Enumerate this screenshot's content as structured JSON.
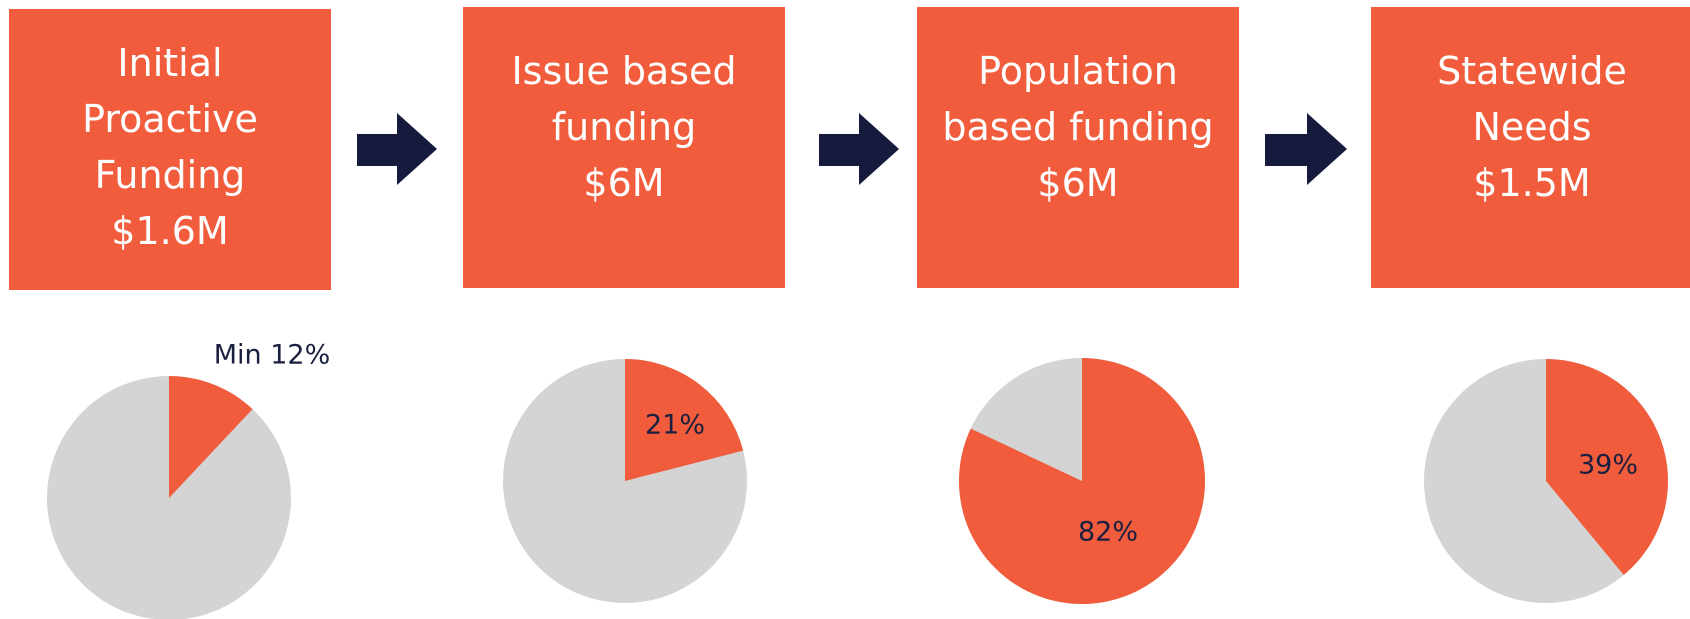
{
  "steps": [
    {
      "lines": [
        "Initial",
        "Proactive",
        "Funding",
        "$1.6M"
      ]
    },
    {
      "lines": [
        "Issue based",
        "funding",
        "$6M"
      ]
    },
    {
      "lines": [
        "Population",
        "based funding",
        "$6M"
      ]
    },
    {
      "lines": [
        "Statewide",
        "Needs",
        "$1.5M"
      ]
    }
  ],
  "chart_data": [
    {
      "type": "pie",
      "values": [
        12
      ],
      "value_labels": [
        "Min 12%"
      ],
      "color": "#f05c3c",
      "rest_color": "#d4d4d4"
    },
    {
      "type": "pie",
      "values": [
        21
      ],
      "value_labels": [
        "21%"
      ],
      "color": "#f05c3c",
      "rest_color": "#d4d4d4"
    },
    {
      "type": "pie",
      "values": [
        82
      ],
      "value_labels": [
        "82%"
      ],
      "color": "#f05c3c",
      "rest_color": "#d4d4d4"
    },
    {
      "type": "pie",
      "values": [
        39
      ],
      "value_labels": [
        "39%"
      ],
      "color": "#f05c3c",
      "rest_color": "#d4d4d4"
    }
  ]
}
